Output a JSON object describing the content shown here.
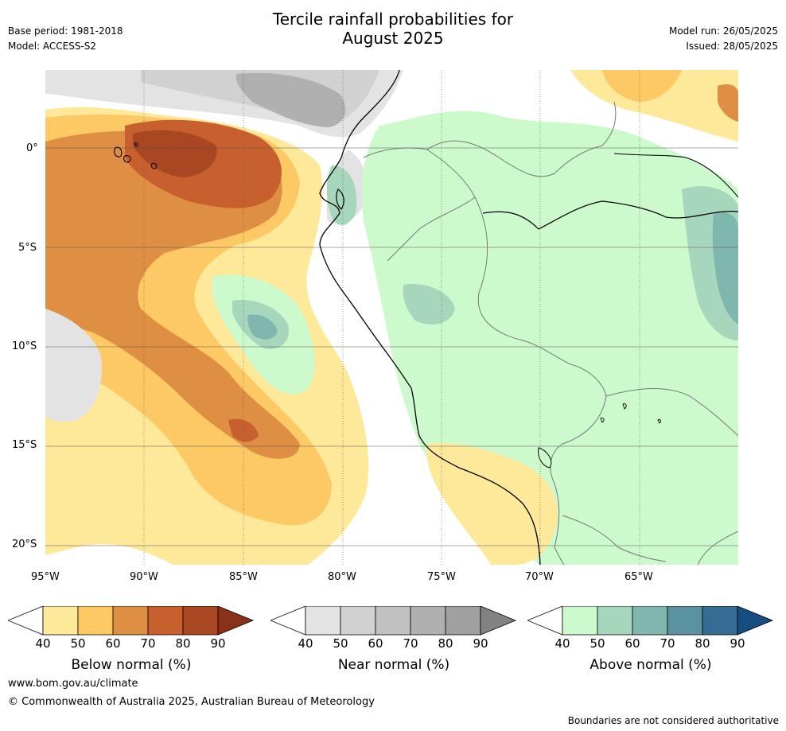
{
  "header": {
    "title_line1": "Tercile rainfall probabilities for",
    "title_line2": "August 2025",
    "base_period": "Base period: 1981-2018",
    "model": "Model: ACCESS-S2",
    "model_run": "Model run: 26/05/2025",
    "issued": "Issued: 28/05/2025"
  },
  "map": {
    "lon_labels": [
      "95°W",
      "90°W",
      "85°W",
      "80°W",
      "75°W",
      "70°W",
      "65°W"
    ],
    "lat_labels": [
      "0°",
      "5°S",
      "10°S",
      "15°S",
      "20°S"
    ],
    "region": "Western South America and eastern Pacific"
  },
  "legends": [
    {
      "title": "Below normal (%)",
      "ticks": [
        "40",
        "50",
        "60",
        "70",
        "80",
        "90"
      ],
      "colors": [
        "#fee89a",
        "#fdc964",
        "#df8f43",
        "#c7602e",
        "#a94722",
        "#8a3219"
      ]
    },
    {
      "title": "Near normal (%)",
      "ticks": [
        "40",
        "50",
        "60",
        "70",
        "80",
        "90"
      ],
      "colors": [
        "#e3e3e3",
        "#d1d1d1",
        "#c1c1c1",
        "#b0b0b0",
        "#a0a0a0",
        "#828282"
      ]
    },
    {
      "title": "Above normal (%)",
      "ticks": [
        "40",
        "50",
        "60",
        "70",
        "80",
        "90"
      ],
      "colors": [
        "#ccfacc",
        "#a6d6bc",
        "#7fb7ae",
        "#5a939f",
        "#346c94",
        "#174e82"
      ]
    }
  ],
  "footer": {
    "website": "www.bom.gov.au/climate",
    "copyright": "© Commonwealth of Australia 2025, Australian Bureau of Meteorology",
    "disclaimer": "Boundaries are not considered authoritative"
  }
}
